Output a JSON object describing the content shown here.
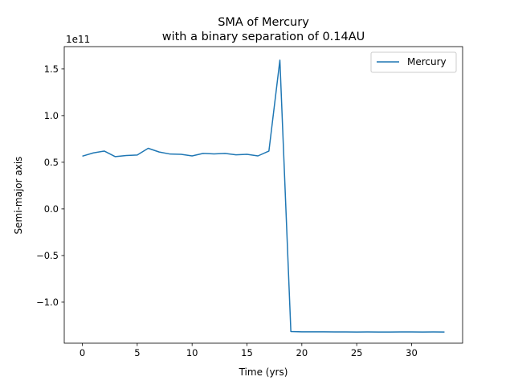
{
  "chart_data": {
    "type": "line",
    "title": "SMA of Mercury",
    "subtitle": "with a binary separation of 0.14AU",
    "xlabel": "Time (yrs)",
    "ylabel": "Semi-major axis",
    "y_offset_label": "1e11",
    "xlim": [
      -1.65,
      34.65
    ],
    "ylim": [
      -144000000000.0,
      174000000000.0
    ],
    "x_ticks": [
      0,
      5,
      10,
      15,
      20,
      25,
      30
    ],
    "y_ticks": [
      -100000000000.0,
      -50000000000.0,
      0,
      50000000000.0,
      100000000000.0,
      150000000000.0
    ],
    "x_tick_labels": [
      "0",
      "5",
      "10",
      "15",
      "20",
      "25",
      "30"
    ],
    "y_tick_labels": [
      "−1.0",
      "−0.5",
      "0.0",
      "0.5",
      "1.0",
      "1.5"
    ],
    "grid": false,
    "legend_position": "top-right",
    "series": [
      {
        "name": "Mercury",
        "color": "#1f77b4",
        "x": [
          0,
          1,
          2,
          3,
          4,
          5,
          6,
          7,
          8,
          9,
          10,
          11,
          12,
          13,
          14,
          15,
          16,
          17,
          18,
          19,
          20,
          21,
          22,
          23,
          24,
          25,
          26,
          27,
          28,
          29,
          30,
          31,
          32,
          33
        ],
        "y": [
          56500000000.0,
          60000000000.0,
          62000000000.0,
          56000000000.0,
          57200000000.0,
          57800000000.0,
          65000000000.0,
          61000000000.0,
          58800000000.0,
          58500000000.0,
          56800000000.0,
          59500000000.0,
          59000000000.0,
          59500000000.0,
          58000000000.0,
          58500000000.0,
          56800000000.0,
          62000000000.0,
          159500000000.0,
          -131500000000.0,
          -131800000000.0,
          -131800000000.0,
          -131800000000.0,
          -131900000000.0,
          -131900000000.0,
          -132000000000.0,
          -131900000000.0,
          -132000000000.0,
          -132000000000.0,
          -131900000000.0,
          -131900000000.0,
          -132000000000.0,
          -131900000000.0,
          -132000000000.0
        ]
      }
    ]
  }
}
